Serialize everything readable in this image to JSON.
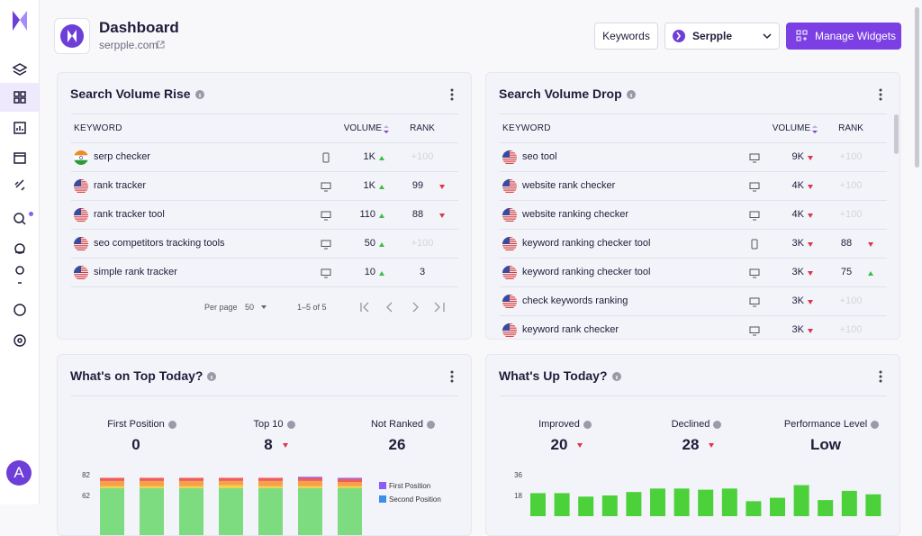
{
  "sidebar": {
    "avatar": "A"
  },
  "header": {
    "title": "Dashboard",
    "site": "serpple.com",
    "keywords_button": "Keywords",
    "project_select": "Serpple",
    "manage_button": "Manage Widgets"
  },
  "widgets": [
    {
      "title": "Search Volume Rise",
      "columns": [
        "KEYWORD",
        "VOLUME",
        "RANK"
      ],
      "rows": [
        {
          "flag": "in",
          "keyword": "serp checker",
          "device": "mobile",
          "volume": "1K",
          "volume_trend": "up",
          "rank": "+100",
          "rank_faded": true
        },
        {
          "flag": "us",
          "keyword": "rank tracker",
          "device": "desktop",
          "volume": "1K",
          "volume_trend": "up",
          "rank": 99,
          "rank_trend": "down"
        },
        {
          "flag": "us",
          "keyword": "rank tracker tool",
          "device": "desktop",
          "volume": "110",
          "volume_trend": "up",
          "rank": 88,
          "rank_trend": "down"
        },
        {
          "flag": "us",
          "keyword": "seo competitors tracking tools",
          "device": "desktop",
          "volume": "50",
          "volume_trend": "up",
          "rank": "+100",
          "rank_faded": true
        },
        {
          "flag": "us",
          "keyword": "simple rank tracker",
          "device": "desktop",
          "volume": "10",
          "volume_trend": "up",
          "rank": 3
        }
      ],
      "footer": {
        "per_page_label": "Per page",
        "per_page": 50,
        "range": "1–5 of 5"
      }
    },
    {
      "title": "Search Volume Drop",
      "columns": [
        "KEYWORD",
        "VOLUME",
        "RANK"
      ],
      "rows": [
        {
          "flag": "us",
          "keyword": "seo tool",
          "device": "desktop",
          "volume": "9K",
          "volume_trend": "down",
          "rank": "+100",
          "rank_faded": true
        },
        {
          "flag": "us",
          "keyword": "website rank checker",
          "device": "desktop",
          "volume": "4K",
          "volume_trend": "down",
          "rank": "+100",
          "rank_faded": true
        },
        {
          "flag": "us",
          "keyword": "website ranking checker",
          "device": "desktop",
          "volume": "4K",
          "volume_trend": "down",
          "rank": "+100",
          "rank_faded": true
        },
        {
          "flag": "us",
          "keyword": "keyword ranking checker tool",
          "device": "mobile",
          "volume": "3K",
          "volume_trend": "down",
          "rank": 88,
          "rank_trend": "down"
        },
        {
          "flag": "us",
          "keyword": "keyword ranking checker tool",
          "device": "desktop",
          "volume": "3K",
          "volume_trend": "down",
          "rank": 75,
          "rank_trend": "up"
        },
        {
          "flag": "us",
          "keyword": "check keywords ranking",
          "device": "desktop",
          "volume": "3K",
          "volume_trend": "down",
          "rank": "+100",
          "rank_faded": true
        },
        {
          "flag": "us",
          "keyword": "keyword rank checker",
          "device": "desktop",
          "volume": "3K",
          "volume_trend": "down",
          "rank": "+100",
          "rank_faded": true
        }
      ]
    },
    {
      "title": "What's on Top Today?",
      "stats": [
        {
          "label": "First Position",
          "value": 0
        },
        {
          "label": "Top 10",
          "value": 8,
          "trend": "down"
        },
        {
          "label": "Not Ranked",
          "value": 26
        }
      ],
      "chart": {
        "type": "stacked_bar",
        "ylim": [
          0,
          82
        ],
        "yticks": [
          62,
          82
        ],
        "series": [
          {
            "color": "#7ddc7f",
            "values": [
              69,
              69,
              69,
              69,
              69,
              69,
              69
            ]
          },
          {
            "color": "#f4d04a",
            "values": [
              2,
              2,
              2,
              3,
              2,
              2,
              2
            ]
          },
          {
            "color": "#f5a14a",
            "values": [
              5,
              5,
              5,
              4,
              5,
              5,
              4
            ]
          },
          {
            "color": "#ee5c5c",
            "values": [
              3,
              3,
              3,
              3,
              3,
              3,
              3
            ]
          },
          {
            "name": "Second Position",
            "color": "#3b8fe8",
            "values": [
              0,
              0,
              0,
              0,
              0,
              0,
              0
            ]
          },
          {
            "name": "First Position",
            "color": "#8b5cf6",
            "values": [
              0,
              0,
              0,
              0,
              0,
              1,
              1
            ]
          }
        ]
      }
    },
    {
      "title": "What's Up Today?",
      "stats": [
        {
          "label": "Improved",
          "value": 20,
          "trend": "down"
        },
        {
          "label": "Declined",
          "value": 28,
          "trend": "down"
        },
        {
          "label": "Performance Level",
          "value": "Low"
        }
      ],
      "chart": {
        "type": "bar",
        "ylim": [
          0,
          36
        ],
        "yticks": [
          18,
          36
        ],
        "color": "#4cd13a",
        "values": [
          20,
          20,
          17,
          18,
          21,
          24,
          24,
          23,
          24,
          13,
          16,
          27,
          14,
          22,
          19
        ]
      }
    }
  ]
}
